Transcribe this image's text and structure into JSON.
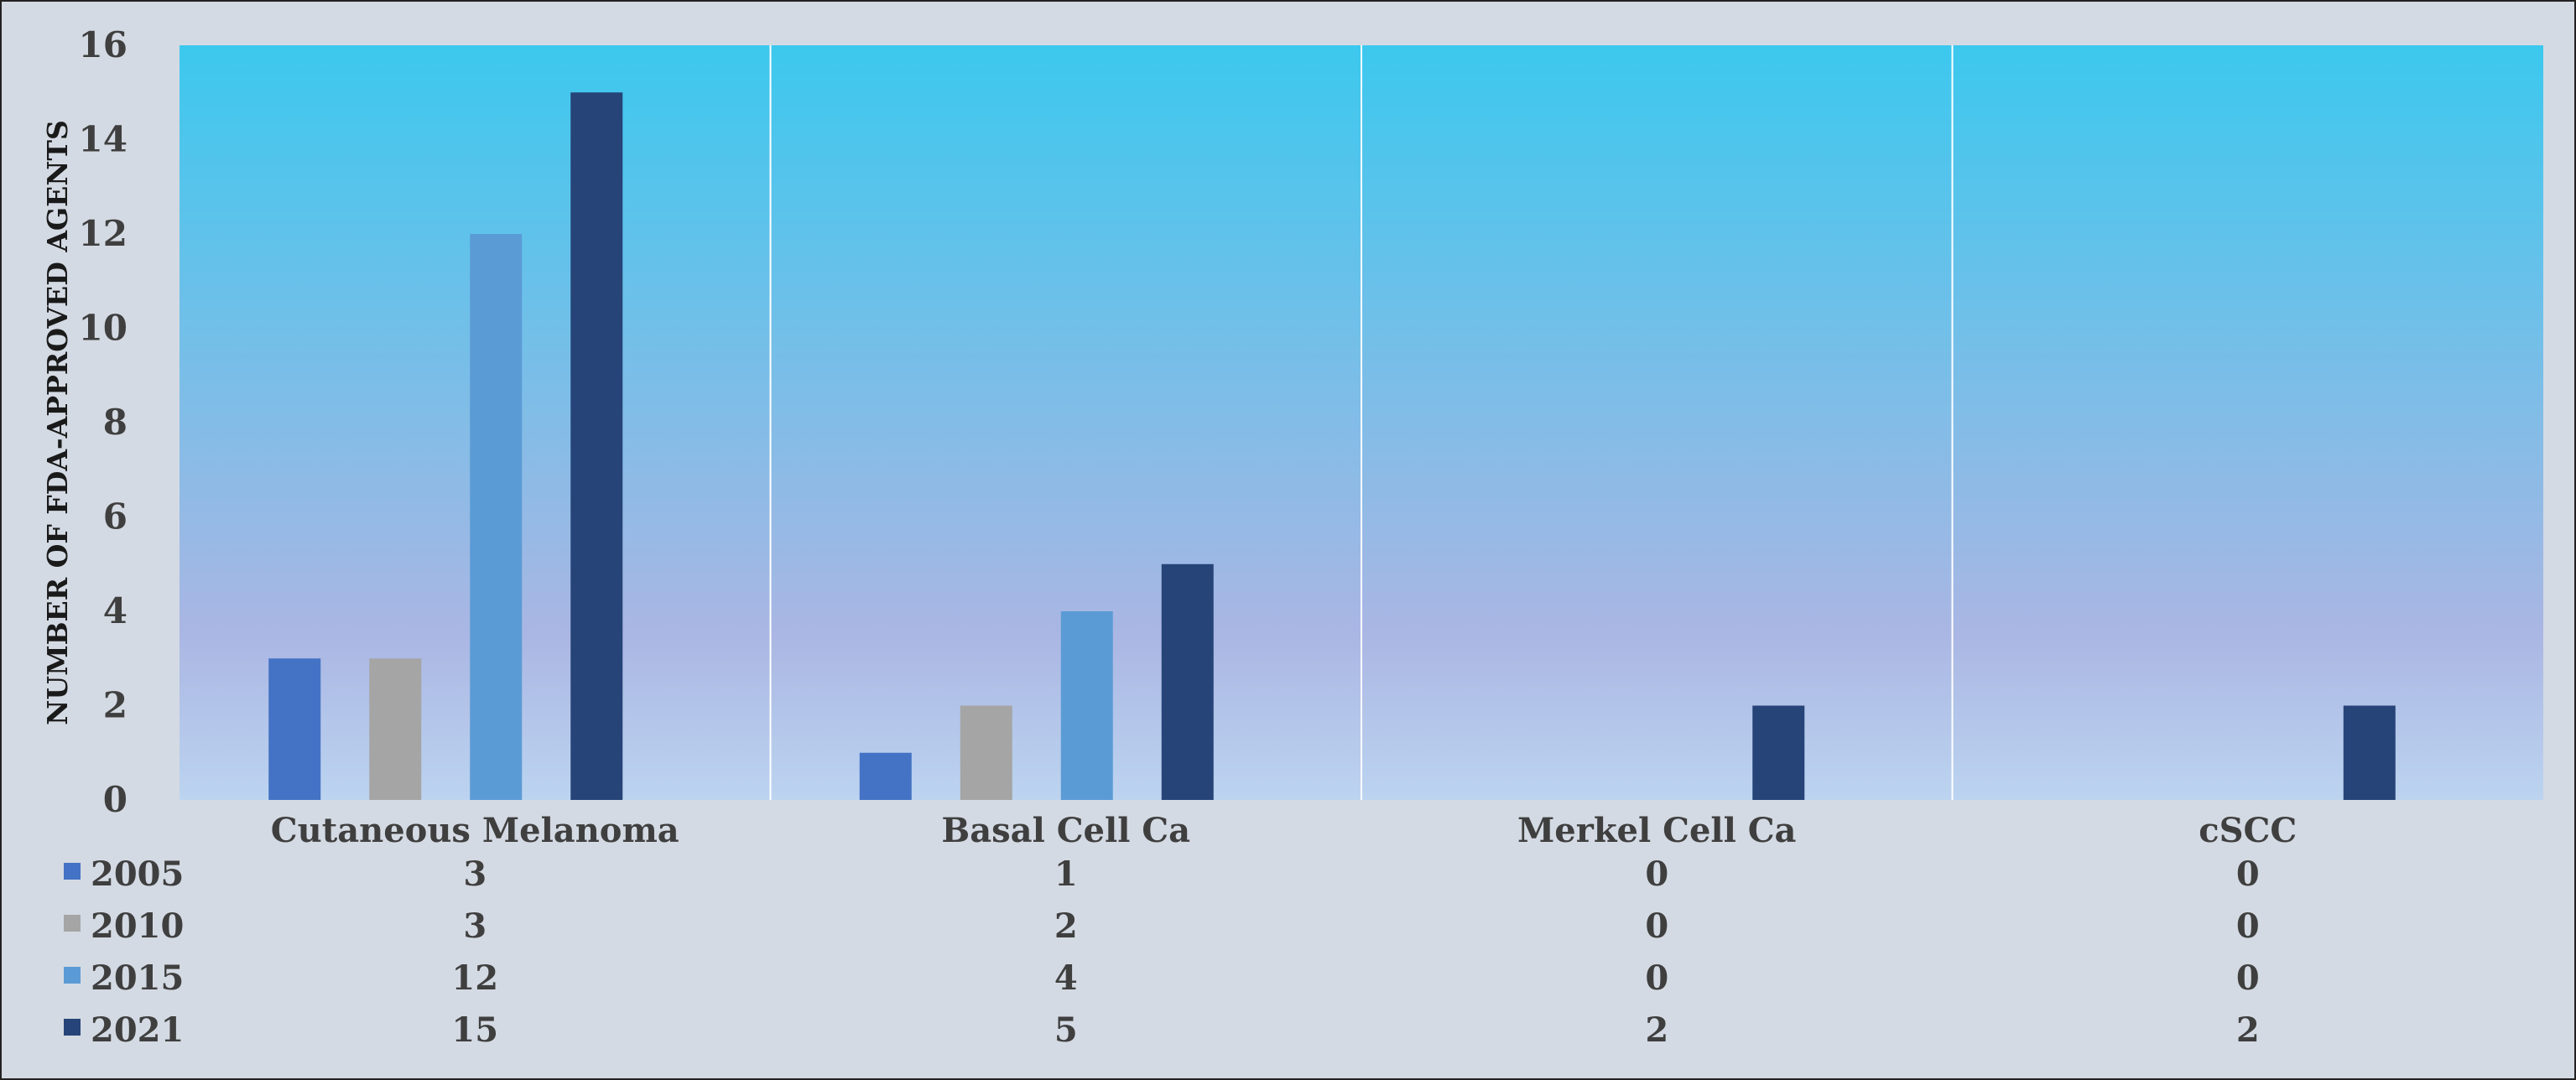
{
  "chart_data": {
    "type": "bar",
    "ylabel": "NUMBER OF FDA-APPROVED  AGENTS",
    "xlabel": "",
    "ylim": [
      0,
      16
    ],
    "yticks": [
      0,
      2,
      4,
      6,
      8,
      10,
      12,
      14,
      16
    ],
    "grid": "vertical category separators",
    "legend": "data table below chart",
    "categories": [
      "Cutaneous Melanoma",
      "Basal Cell Ca",
      "Merkel Cell Ca",
      "cSCC"
    ],
    "series": [
      {
        "name": "2005",
        "color": "#4472c4",
        "values": [
          3,
          1,
          0,
          0
        ]
      },
      {
        "name": "2010",
        "color": "#a5a5a5",
        "values": [
          3,
          2,
          0,
          0
        ]
      },
      {
        "name": "2015",
        "color": "#5b9bd5",
        "values": [
          12,
          4,
          0,
          0
        ]
      },
      {
        "name": "2021",
        "color": "#264478",
        "values": [
          15,
          5,
          2,
          2
        ]
      }
    ],
    "background_gradient": [
      "#3cc8ee",
      "#aab6e3",
      "#bcd4f0"
    ]
  }
}
